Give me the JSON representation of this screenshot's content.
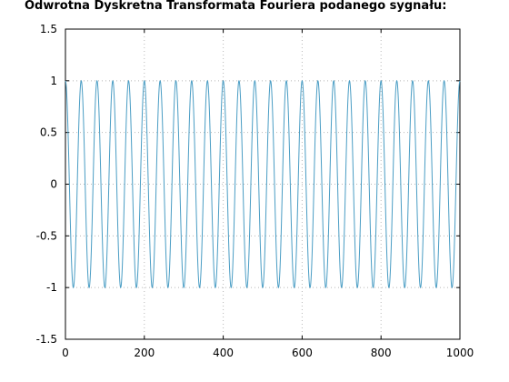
{
  "chart_data": {
    "type": "line",
    "title": "Odwrotna Dyskretna Transformata Fouriera podanego sygnału:",
    "xlabel": "",
    "ylabel": "",
    "xlim": [
      0,
      1000
    ],
    "ylim": [
      -1.5,
      1.5
    ],
    "x_ticks": [
      "0",
      "200",
      "400",
      "600",
      "800",
      "1000"
    ],
    "y_ticks": [
      "1.5",
      "1",
      "0.5",
      "0",
      "-0.5",
      "-1",
      "-1.5"
    ],
    "grid": true,
    "legend": "none",
    "series": [
      {
        "function": "cos",
        "amplitude": 1,
        "cycles_per_1000_samples": 25,
        "x_start": 0,
        "x_end": 1000
      }
    ],
    "colors": {
      "line": "#4a9dc4",
      "grid": "#b8b8b8",
      "axes": "#000000"
    }
  }
}
